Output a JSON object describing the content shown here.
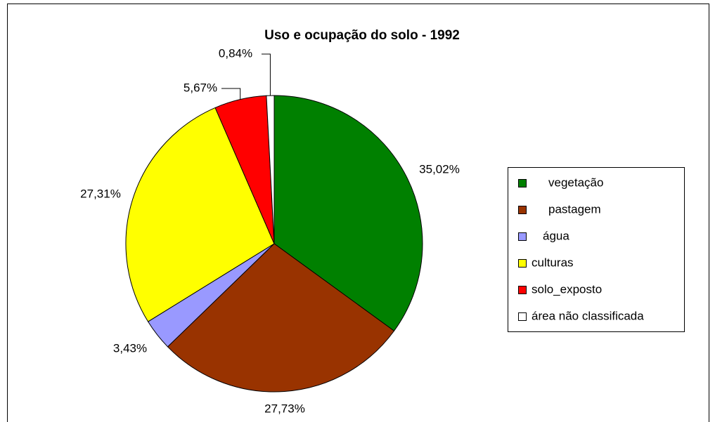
{
  "chart_data": {
    "type": "pie",
    "title": "Uso e ocupação do solo - 1992",
    "categories": [
      "vegetação",
      "pastagem",
      "água",
      "culturas",
      "solo_exposto",
      "área não classificada"
    ],
    "values": [
      35.02,
      27.73,
      3.43,
      27.31,
      5.67,
      0.84
    ],
    "value_labels": [
      "35,02%",
      "27,73%",
      "3,43%",
      "27,31%",
      "5,67%",
      "0,84%"
    ],
    "colors": [
      "#008000",
      "#993300",
      "#9999ff",
      "#ffff00",
      "#ff0000",
      "#ffffff"
    ],
    "legend": "right"
  }
}
